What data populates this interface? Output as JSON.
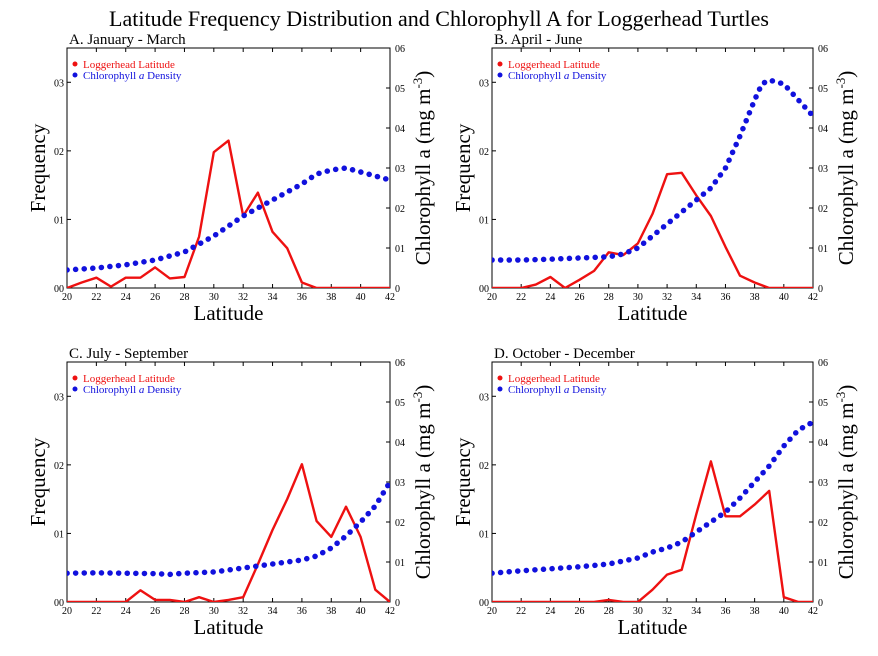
{
  "title": "Latitude Frequency Distribution and Chlorophyll A for Loggerhead Turtles",
  "colors": {
    "loggerhead": "#ee1111",
    "chlorophyll": "#1111dd",
    "axis": "#000000"
  },
  "legend": {
    "loggerhead": "Loggerhead Latitude",
    "chlorophyll_pre": "Chlorophyll ",
    "chlorophyll_italic": "a",
    "chlorophyll_post": " Density"
  },
  "axes": {
    "xlabel": "Latitude",
    "ylabel_left": "Frequency",
    "ylabel_right": "Chlorophyll a (mg m",
    "ylabel_right_sup": "-3",
    "ylabel_right_close": ")"
  },
  "chart_data": [
    {
      "type": "line",
      "title": "A. January - March",
      "xlim": [
        20,
        42
      ],
      "ylim_left": [
        0,
        0.035
      ],
      "ylim_right": [
        0,
        0.6
      ],
      "x_ticks": [
        20,
        22,
        24,
        26,
        28,
        30,
        32,
        34,
        36,
        38,
        40,
        42
      ],
      "left_ticks": [
        0,
        0.01,
        0.02,
        0.03
      ],
      "left_tick_labels": [
        "00",
        "01",
        "02",
        "03"
      ],
      "right_ticks": [
        0,
        0.1,
        0.2,
        0.3,
        0.4,
        0.5,
        0.6
      ],
      "right_tick_labels": [
        "0",
        "01",
        "02",
        "03",
        "04",
        "05",
        "06"
      ],
      "series": [
        {
          "name": "Loggerhead Latitude",
          "axis": "left",
          "style": "solid",
          "x": [
            20,
            21,
            22,
            23,
            24,
            25,
            26,
            27,
            28,
            29,
            30,
            31,
            32,
            33,
            34,
            35,
            36,
            37,
            38,
            39,
            40,
            41,
            42
          ],
          "y": [
            0.0,
            0.0008,
            0.0015,
            0.0002,
            0.0015,
            0.0015,
            0.003,
            0.0014,
            0.0016,
            0.0075,
            0.0198,
            0.0215,
            0.0105,
            0.0139,
            0.0082,
            0.0058,
            0.0008,
            0.0,
            0.0,
            0.0,
            0.0,
            0.0,
            0.0
          ]
        },
        {
          "name": "Chlorophyll a Density",
          "axis": "right",
          "style": "dotted",
          "x": [
            20,
            22,
            24,
            26,
            28,
            30,
            32,
            34,
            36,
            37,
            38,
            39,
            40,
            41,
            42
          ],
          "y": [
            0.045,
            0.05,
            0.058,
            0.07,
            0.09,
            0.13,
            0.18,
            0.22,
            0.26,
            0.285,
            0.295,
            0.3,
            0.29,
            0.28,
            0.27
          ]
        }
      ]
    },
    {
      "type": "line",
      "title": "B. April - June",
      "xlim": [
        20,
        42
      ],
      "ylim_left": [
        0,
        0.035
      ],
      "ylim_right": [
        0,
        0.6
      ],
      "x_ticks": [
        20,
        22,
        24,
        26,
        28,
        30,
        32,
        34,
        36,
        38,
        40,
        42
      ],
      "left_ticks": [
        0,
        0.01,
        0.02,
        0.03
      ],
      "left_tick_labels": [
        "00",
        "01",
        "02",
        "03"
      ],
      "right_ticks": [
        0,
        0.1,
        0.2,
        0.3,
        0.4,
        0.5,
        0.6
      ],
      "right_tick_labels": [
        "0",
        "01",
        "02",
        "03",
        "04",
        "05",
        "06"
      ],
      "series": [
        {
          "name": "Loggerhead Latitude",
          "axis": "left",
          "style": "solid",
          "x": [
            20,
            21,
            22,
            23,
            24,
            25,
            26,
            27,
            28,
            29,
            30,
            31,
            32,
            33,
            34,
            35,
            36,
            37,
            38,
            39,
            40,
            41,
            42
          ],
          "y": [
            0.0,
            0.0,
            0.0,
            0.0005,
            0.0016,
            0.0,
            0.0012,
            0.0025,
            0.0052,
            0.0048,
            0.0065,
            0.0108,
            0.0166,
            0.0168,
            0.0135,
            0.0105,
            0.006,
            0.0018,
            0.0008,
            0.0,
            0.0,
            0.0,
            0.0
          ]
        },
        {
          "name": "Chlorophyll a Density",
          "axis": "right",
          "style": "dotted",
          "x": [
            20,
            22,
            24,
            26,
            28,
            29,
            30,
            31,
            32,
            33,
            34,
            35,
            36,
            37,
            38,
            38.5,
            39,
            40,
            41,
            42
          ],
          "y": [
            0.07,
            0.07,
            0.072,
            0.075,
            0.078,
            0.085,
            0.1,
            0.13,
            0.16,
            0.19,
            0.22,
            0.25,
            0.3,
            0.38,
            0.47,
            0.51,
            0.52,
            0.51,
            0.47,
            0.43
          ]
        }
      ]
    },
    {
      "type": "line",
      "title": "C. July - September",
      "xlim": [
        20,
        42
      ],
      "ylim_left": [
        0,
        0.035
      ],
      "ylim_right": [
        0,
        0.6
      ],
      "x_ticks": [
        20,
        22,
        24,
        26,
        28,
        30,
        32,
        34,
        36,
        38,
        40,
        42
      ],
      "left_ticks": [
        0,
        0.01,
        0.02,
        0.03
      ],
      "left_tick_labels": [
        "00",
        "01",
        "02",
        "03"
      ],
      "right_ticks": [
        0,
        0.1,
        0.2,
        0.3,
        0.4,
        0.5,
        0.6
      ],
      "right_tick_labels": [
        "0",
        "01",
        "02",
        "03",
        "04",
        "05",
        "06"
      ],
      "series": [
        {
          "name": "Loggerhead Latitude",
          "axis": "left",
          "style": "solid",
          "x": [
            20,
            21,
            22,
            23,
            24,
            25,
            26,
            27,
            28,
            29,
            30,
            31,
            32,
            33,
            34,
            35,
            36,
            37,
            38,
            39,
            40,
            41,
            42
          ],
          "y": [
            0.0,
            0.0,
            0.0,
            0.0,
            0.0,
            0.0017,
            0.0003,
            0.0003,
            0.0,
            0.0007,
            0.0,
            0.0003,
            0.0007,
            0.0055,
            0.0105,
            0.015,
            0.0201,
            0.0118,
            0.0095,
            0.0139,
            0.0095,
            0.0018,
            0.0
          ]
        },
        {
          "name": "Chlorophyll a Density",
          "axis": "right",
          "style": "dotted",
          "x": [
            20,
            22,
            24,
            26,
            27,
            28,
            30,
            32,
            34,
            36,
            37,
            38,
            39,
            40,
            41,
            42
          ],
          "y": [
            0.072,
            0.073,
            0.072,
            0.071,
            0.069,
            0.072,
            0.075,
            0.085,
            0.095,
            0.105,
            0.115,
            0.135,
            0.165,
            0.2,
            0.24,
            0.3
          ]
        }
      ]
    },
    {
      "type": "line",
      "title": "D. October - December",
      "xlim": [
        20,
        42
      ],
      "ylim_left": [
        0,
        0.035
      ],
      "ylim_right": [
        0,
        0.6
      ],
      "x_ticks": [
        20,
        22,
        24,
        26,
        28,
        30,
        32,
        34,
        36,
        38,
        40,
        42
      ],
      "left_ticks": [
        0,
        0.01,
        0.02,
        0.03
      ],
      "left_tick_labels": [
        "00",
        "01",
        "02",
        "03"
      ],
      "right_ticks": [
        0,
        0.1,
        0.2,
        0.3,
        0.4,
        0.5,
        0.6
      ],
      "right_tick_labels": [
        "0",
        "01",
        "02",
        "03",
        "04",
        "05",
        "06"
      ],
      "series": [
        {
          "name": "Loggerhead Latitude",
          "axis": "left",
          "style": "solid",
          "x": [
            20,
            21,
            22,
            23,
            24,
            25,
            26,
            27,
            28,
            29,
            30,
            31,
            32,
            33,
            34,
            35,
            36,
            37,
            38,
            39,
            40,
            41,
            42
          ],
          "y": [
            0.0,
            0.0,
            0.0,
            0.0,
            0.0,
            0.0,
            0.0,
            0.0,
            0.0003,
            0.0,
            0.0,
            0.0018,
            0.004,
            0.0047,
            0.0128,
            0.0205,
            0.0125,
            0.0125,
            0.0142,
            0.0162,
            0.0007,
            0.0,
            0.0
          ]
        },
        {
          "name": "Chlorophyll a Density",
          "axis": "right",
          "style": "dotted",
          "x": [
            20,
            22,
            24,
            26,
            28,
            30,
            31,
            32,
            33,
            34,
            35,
            36,
            37,
            38,
            39,
            40,
            41,
            42
          ],
          "y": [
            0.072,
            0.078,
            0.083,
            0.088,
            0.095,
            0.11,
            0.125,
            0.135,
            0.15,
            0.175,
            0.2,
            0.225,
            0.26,
            0.3,
            0.34,
            0.39,
            0.43,
            0.45
          ]
        }
      ]
    }
  ]
}
